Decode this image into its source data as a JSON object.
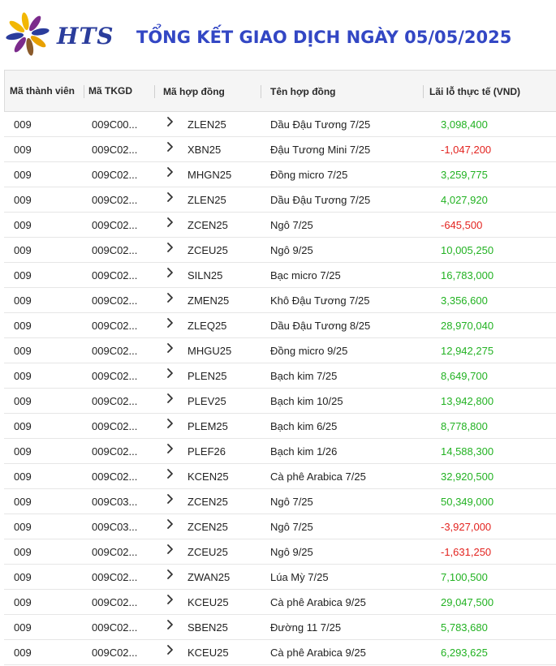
{
  "header": {
    "logo_text": "HTS",
    "title": "TỔNG KẾT GIAO DỊCH NGÀY 05/05/2025"
  },
  "colors": {
    "positive": "#22b222",
    "negative": "#e3231f",
    "title": "#3347c4"
  },
  "table": {
    "columns": {
      "member": "Mã thành viên",
      "account": "Mã TKGD",
      "contract_code": "Mã hợp đồng",
      "contract_name": "Tên hợp đồng",
      "pnl": "Lãi lỗ thực tế (VND)"
    },
    "rows": [
      {
        "member": "009",
        "account": "009C00...",
        "code": "ZLEN25",
        "name": "Dầu Đậu Tương 7/25",
        "pnl": "3,098,400",
        "sign": "pos"
      },
      {
        "member": "009",
        "account": "009C02...",
        "code": "XBN25",
        "name": "Đậu Tương Mini 7/25",
        "pnl": "-1,047,200",
        "sign": "neg"
      },
      {
        "member": "009",
        "account": "009C02...",
        "code": "MHGN25",
        "name": "Đồng micro 7/25",
        "pnl": "3,259,775",
        "sign": "pos"
      },
      {
        "member": "009",
        "account": "009C02...",
        "code": "ZLEN25",
        "name": "Dầu Đậu Tương 7/25",
        "pnl": "4,027,920",
        "sign": "pos"
      },
      {
        "member": "009",
        "account": "009C02...",
        "code": "ZCEN25",
        "name": "Ngô 7/25",
        "pnl": "-645,500",
        "sign": "neg"
      },
      {
        "member": "009",
        "account": "009C02...",
        "code": "ZCEU25",
        "name": "Ngô 9/25",
        "pnl": "10,005,250",
        "sign": "pos"
      },
      {
        "member": "009",
        "account": "009C02...",
        "code": "SILN25",
        "name": "Bạc micro 7/25",
        "pnl": "16,783,000",
        "sign": "pos"
      },
      {
        "member": "009",
        "account": "009C02...",
        "code": "ZMEN25",
        "name": "Khô Đậu Tương 7/25",
        "pnl": "3,356,600",
        "sign": "pos"
      },
      {
        "member": "009",
        "account": "009C02...",
        "code": "ZLEQ25",
        "name": "Dầu Đậu Tương 8/25",
        "pnl": "28,970,040",
        "sign": "pos"
      },
      {
        "member": "009",
        "account": "009C02...",
        "code": "MHGU25",
        "name": "Đồng micro 9/25",
        "pnl": "12,942,275",
        "sign": "pos"
      },
      {
        "member": "009",
        "account": "009C02...",
        "code": "PLEN25",
        "name": "Bạch kim 7/25",
        "pnl": "8,649,700",
        "sign": "pos"
      },
      {
        "member": "009",
        "account": "009C02...",
        "code": "PLEV25",
        "name": "Bạch kim 10/25",
        "pnl": "13,942,800",
        "sign": "pos"
      },
      {
        "member": "009",
        "account": "009C02...",
        "code": "PLEM25",
        "name": "Bạch kim 6/25",
        "pnl": "8,778,800",
        "sign": "pos"
      },
      {
        "member": "009",
        "account": "009C02...",
        "code": "PLEF26",
        "name": "Bạch kim 1/26",
        "pnl": "14,588,300",
        "sign": "pos"
      },
      {
        "member": "009",
        "account": "009C02...",
        "code": "KCEN25",
        "name": "Cà phê Arabica 7/25",
        "pnl": "32,920,500",
        "sign": "pos"
      },
      {
        "member": "009",
        "account": "009C03...",
        "code": "ZCEN25",
        "name": "Ngô 7/25",
        "pnl": "50,349,000",
        "sign": "pos"
      },
      {
        "member": "009",
        "account": "009C03...",
        "code": "ZCEN25",
        "name": "Ngô 7/25",
        "pnl": "-3,927,000",
        "sign": "neg"
      },
      {
        "member": "009",
        "account": "009C02...",
        "code": "ZCEU25",
        "name": "Ngô 9/25",
        "pnl": "-1,631,250",
        "sign": "neg"
      },
      {
        "member": "009",
        "account": "009C02...",
        "code": "ZWAN25",
        "name": "Lúa Mỳ 7/25",
        "pnl": "7,100,500",
        "sign": "pos"
      },
      {
        "member": "009",
        "account": "009C02...",
        "code": "KCEU25",
        "name": "Cà phê Arabica 9/25",
        "pnl": "29,047,500",
        "sign": "pos"
      },
      {
        "member": "009",
        "account": "009C02...",
        "code": "SBEN25",
        "name": "Đường 11 7/25",
        "pnl": "5,783,680",
        "sign": "pos"
      },
      {
        "member": "009",
        "account": "009C02...",
        "code": "KCEU25",
        "name": "Cà phê Arabica 9/25",
        "pnl": "6,293,625",
        "sign": "pos"
      }
    ]
  }
}
